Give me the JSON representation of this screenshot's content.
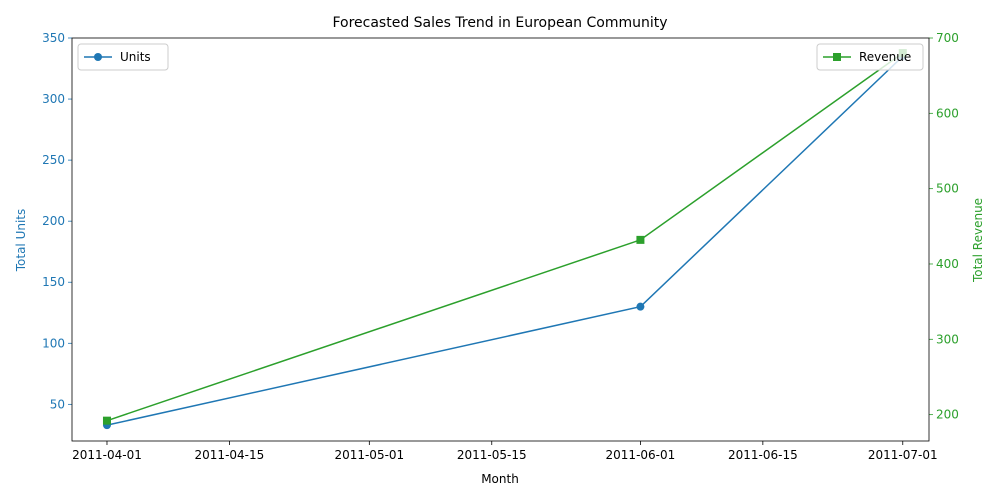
{
  "chart_data": {
    "type": "line",
    "title": "Forecasted Sales Trend in European Community",
    "xlabel": "Month",
    "ylabel_left": "Total Units",
    "ylabel_right": "Total Revenue",
    "x": [
      "2011-04-01",
      "2011-06-01",
      "2011-07-01"
    ],
    "x_ticks": [
      "2011-04-01",
      "2011-04-15",
      "2011-05-01",
      "2011-05-15",
      "2011-06-01",
      "2011-06-15",
      "2011-07-01"
    ],
    "x_range": [
      "2011-03-28",
      "2011-07-04"
    ],
    "ylim_left": [
      20,
      350
    ],
    "ylim_right": [
      165,
      700
    ],
    "yticks_left": [
      50,
      100,
      150,
      200,
      250,
      300,
      350
    ],
    "yticks_right": [
      200,
      300,
      400,
      500,
      600,
      700
    ],
    "grid": false,
    "series": [
      {
        "name": "Units",
        "axis": "left",
        "color": "#1f77b4",
        "marker": "circle",
        "values": [
          33,
          130,
          335
        ]
      },
      {
        "name": "Revenue",
        "axis": "right",
        "color": "#2ca02c",
        "marker": "square",
        "values": [
          192,
          432,
          680
        ]
      }
    ],
    "legends": [
      {
        "series": "Units",
        "placement": "upper-left"
      },
      {
        "series": "Revenue",
        "placement": "upper-right"
      }
    ]
  }
}
